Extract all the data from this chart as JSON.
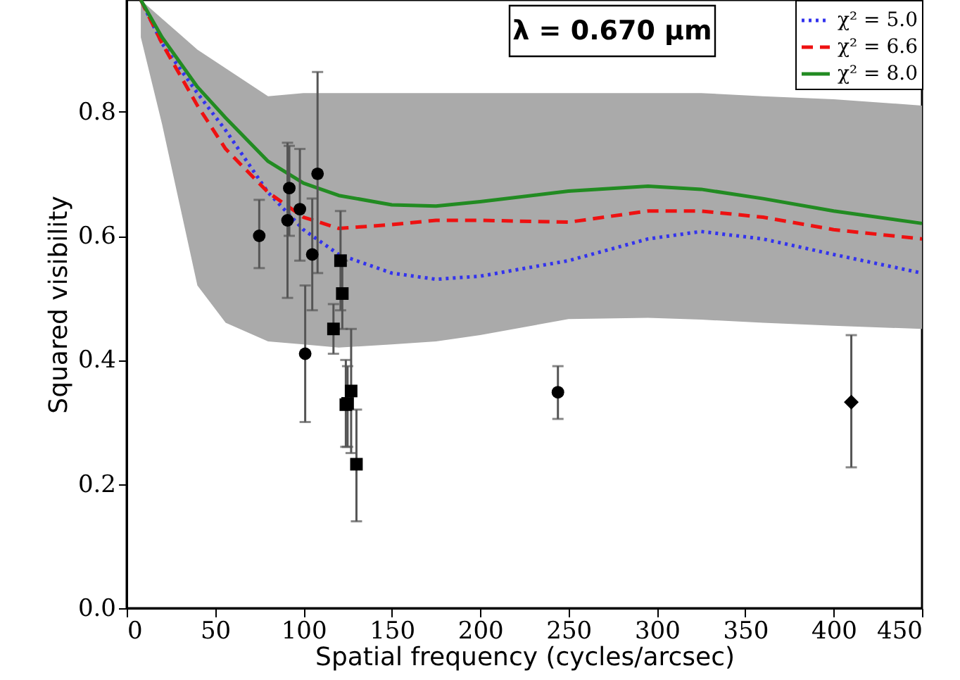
{
  "chart_data": {
    "type": "scatter",
    "xlabel": "Spatial frequency (cycles/arcsec)",
    "ylabel": "Squared visibility",
    "annotations": [
      "λ = 0.670 μm"
    ],
    "xlim": [
      0,
      450
    ],
    "xticks": [
      0,
      50,
      100,
      150,
      200,
      250,
      300,
      350,
      400,
      450
    ],
    "ylim": [
      0,
      0.98
    ],
    "yticks": [
      {
        "value": 0,
        "label": "0.0"
      },
      {
        "value": 0.2,
        "label": "0.2"
      },
      {
        "value": 0.4,
        "label": "0.4"
      },
      {
        "value": 0.6,
        "label": "0.6"
      },
      {
        "value": 0.8,
        "label": "0.8"
      }
    ],
    "grid": false,
    "legend": "top right",
    "series": [
      {
        "type": "line",
        "name": "χ² = 5.0",
        "color": "#3333ee",
        "line_style": "dotted",
        "x": [
          8,
          20,
          40,
          56,
          80,
          100,
          120,
          150,
          175,
          200,
          250,
          295,
          325,
          360,
          400,
          450
        ],
        "values": [
          0.98,
          0.91,
          0.83,
          0.77,
          0.67,
          0.61,
          0.57,
          0.54,
          0.53,
          0.535,
          0.56,
          0.595,
          0.607,
          0.595,
          0.57,
          0.54
        ],
        "upper": [
          0.98,
          0.95,
          0.9,
          0.87,
          0.825,
          0.83,
          0.83,
          0.83,
          0.83,
          0.83,
          0.83,
          0.83,
          0.83,
          0.825,
          0.82,
          0.81
        ],
        "lower": [
          0.92,
          0.78,
          0.52,
          0.46,
          0.43,
          0.425,
          0.42,
          0.425,
          0.43,
          0.44,
          0.466,
          0.468,
          0.465,
          0.46,
          0.455,
          0.45
        ]
      },
      {
        "type": "line",
        "name": "χ² = 6.6",
        "color": "#ee1111",
        "line_style": "dashed",
        "x": [
          8,
          20,
          40,
          56,
          80,
          100,
          120,
          150,
          175,
          200,
          250,
          295,
          325,
          360,
          400,
          450
        ],
        "values": [
          0.98,
          0.91,
          0.81,
          0.74,
          0.67,
          0.63,
          0.612,
          0.618,
          0.625,
          0.625,
          0.622,
          0.64,
          0.64,
          0.63,
          0.61,
          0.595
        ]
      },
      {
        "type": "line",
        "name": "χ² = 8.0",
        "color": "#228b22",
        "line_style": "solid",
        "x": [
          8,
          20,
          40,
          56,
          80,
          100,
          120,
          150,
          175,
          200,
          250,
          295,
          325,
          360,
          400,
          450
        ],
        "values": [
          0.98,
          0.92,
          0.84,
          0.79,
          0.72,
          0.685,
          0.665,
          0.65,
          0.648,
          0.655,
          0.672,
          0.68,
          0.675,
          0.66,
          0.64,
          0.62
        ]
      },
      {
        "type": "scatter",
        "color": "#000000",
        "marker": "circle",
        "x": [
          75,
          91,
          92,
          98,
          101,
          105,
          108,
          244
        ],
        "values": [
          0.6,
          0.625,
          0.677,
          0.643,
          0.41,
          0.57,
          0.7,
          0.348
        ],
        "errors": [
          [
            0.548,
            0.658
          ],
          [
            0.5,
            0.75
          ],
          [
            0.6,
            0.745
          ],
          [
            0.56,
            0.74
          ],
          [
            0.3,
            0.52
          ],
          [
            0.48,
            0.66
          ],
          [
            0.54,
            0.864
          ],
          [
            0.305,
            0.39
          ]
        ]
      },
      {
        "type": "scatter",
        "color": "#000000",
        "marker": "square",
        "x": [
          117,
          121,
          122,
          124,
          125,
          127,
          130
        ],
        "values": [
          0.45,
          0.56,
          0.507,
          0.328,
          0.33,
          0.35,
          0.232
        ],
        "errors": [
          [
            0.41,
            0.49
          ],
          [
            0.48,
            0.64
          ],
          [
            0.45,
            0.56
          ],
          [
            0.26,
            0.4
          ],
          [
            0.26,
            0.39
          ],
          [
            0.25,
            0.45
          ],
          [
            0.14,
            0.32
          ]
        ]
      },
      {
        "type": "scatter",
        "color": "#000000",
        "marker": "diamond",
        "x": [
          410
        ],
        "values": [
          0.332
        ],
        "errors": [
          [
            0.227,
            0.44
          ]
        ]
      }
    ]
  }
}
